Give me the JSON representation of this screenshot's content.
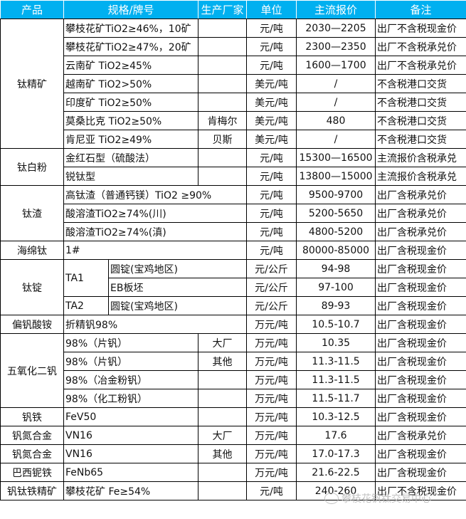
{
  "header_color": "#00b0f0",
  "headers": [
    "产品",
    "规格/牌号",
    "生产厂家",
    "单位",
    "主流报价",
    "备注"
  ],
  "groups": [
    {
      "product": "钛精矿",
      "rows": [
        {
          "spec": "攀枝花矿TiO2≥46%，10矿",
          "maker": "",
          "unit": "元/吨",
          "price": "2030—2205",
          "note": "出厂不含税现金价"
        },
        {
          "spec": "攀枝花矿TiO2≥47%，20矿",
          "maker": "",
          "unit": "元/吨",
          "price": "2300—2350",
          "note": "出厂不含税承兑价"
        },
        {
          "spec": "云南矿 TiO2≥45%",
          "maker": "",
          "unit": "元/吨",
          "price": "1600—1700",
          "note": "出厂不含税承兑价"
        },
        {
          "spec": "越南矿 TiO2>50%",
          "maker": "",
          "unit": "美元/吨",
          "price": "/",
          "note": "不含税港口交货"
        },
        {
          "spec": "印度矿 TiO2≥50%",
          "maker": "",
          "unit": "美元/吨",
          "price": "/",
          "note": "不含税港口交货"
        },
        {
          "spec": "莫桑比克 TiO2≥50%",
          "maker": "肯梅尔",
          "unit": "美元/吨",
          "price": "480",
          "note": "不含税港口交货"
        },
        {
          "spec": "肯尼亚 TiO2≥49%",
          "maker": "贝斯",
          "unit": "美元/吨",
          "price": "/",
          "note": "不含税港口交货"
        }
      ]
    },
    {
      "product": "钛白粉",
      "rows": [
        {
          "spec": "金红石型（硫酸法）",
          "maker": "",
          "unit": "元/吨",
          "price": "15300—16500",
          "note": "主流报价含税承兑"
        },
        {
          "spec": "锐钛型",
          "maker": "",
          "unit": "元/吨",
          "price": "13800—15000",
          "note": "主流报价含税承兑"
        }
      ]
    },
    {
      "product": "钛渣",
      "rows": [
        {
          "spec": "高钛渣（普通钙镁）TiO2 ≥90%",
          "unit": "元/吨",
          "price": "9500-9700",
          "note": "出厂含税承兑价"
        },
        {
          "spec": "酸溶渣TiO2≥74%(川)",
          "unit": "元/吨",
          "price": "5200-5650",
          "note": "出厂含税承兑价"
        },
        {
          "spec": "酸溶渣TiO2≥74%(滇)",
          "unit": "元/吨",
          "price": "4800-5200",
          "note": "出厂含税承兑价"
        }
      ]
    },
    {
      "product": "海绵钛",
      "rows": [
        {
          "spec": "1#",
          "unit": "元/吨",
          "price": "80000-85000",
          "note": "出厂含税现金价"
        }
      ]
    },
    {
      "product": "钛锭",
      "rows": [
        {
          "grade": "TA1",
          "sub": "圆锭(宝鸡地区)",
          "unit": "元/公斤",
          "price": "94-98",
          "note": "出厂含税现金价"
        },
        {
          "sub": "EB板坯",
          "unit": "元/公斤",
          "price": "97-100",
          "note": "出厂含税现金价"
        },
        {
          "grade": "TA2",
          "sub": "圆锭(宝鸡地区)",
          "unit": "元/公斤",
          "price": "89-93",
          "note": "出厂含税现金价"
        }
      ]
    },
    {
      "product": "偏钒酸铵",
      "rows": [
        {
          "spec": "折精钒98%",
          "unit": "万元/吨",
          "price": "10.5-10.7",
          "note": "出厂含税现金价"
        }
      ]
    },
    {
      "product": "五氧化二钒",
      "rows": [
        {
          "spec": "98%（片钒）",
          "maker": "大厂",
          "unit": "万元/吨",
          "price": "10.35",
          "note": "出厂含税现金价"
        },
        {
          "spec": "98%（片钒）",
          "maker": "其他",
          "unit": "万元/吨",
          "price": "11.3-11.5",
          "note": "出厂含税现金价"
        },
        {
          "spec": "98%（冶金粉钒）",
          "maker": "",
          "unit": "万元/吨",
          "price": "11.3-11.5",
          "note": "出厂含税现金价"
        },
        {
          "spec": "98%（化工粉钒）",
          "maker": "",
          "unit": "万元/吨",
          "price": "11.5-11.7",
          "note": "出厂含税现金价"
        }
      ]
    },
    {
      "product": "钒铁",
      "rows": [
        {
          "spec": "FeV50",
          "maker": "",
          "unit": "万元/吨",
          "price": "10.3-12.5",
          "note": "出厂含税现金价"
        }
      ]
    },
    {
      "product": "钒氮合金",
      "rows": [
        {
          "spec": "VN16",
          "maker": "大厂",
          "unit": "万元/吨",
          "price": "17.6",
          "note": "出厂含税承兑价"
        }
      ]
    },
    {
      "product": "钒氮合金",
      "rows": [
        {
          "spec": "VN16",
          "maker": "其他",
          "unit": "万元/吨",
          "price": "17.0-17.3",
          "note": "出厂含税现金价"
        }
      ]
    },
    {
      "product": "巴西铌铁",
      "rows": [
        {
          "spec": "FeNb65",
          "maker": "",
          "unit": "万元/吨",
          "price": "21.6-22.5",
          "note": "出厂含税现金价"
        }
      ]
    },
    {
      "product": "钒钛铁精矿",
      "rows": [
        {
          "spec": "攀枝花矿 Fe≥54%",
          "maker": "",
          "unit": "元/吨",
          "price": "240-260",
          "note": "出厂不含税现金价"
        }
      ]
    }
  ],
  "watermark": "攀枝花钒钛交易中心"
}
